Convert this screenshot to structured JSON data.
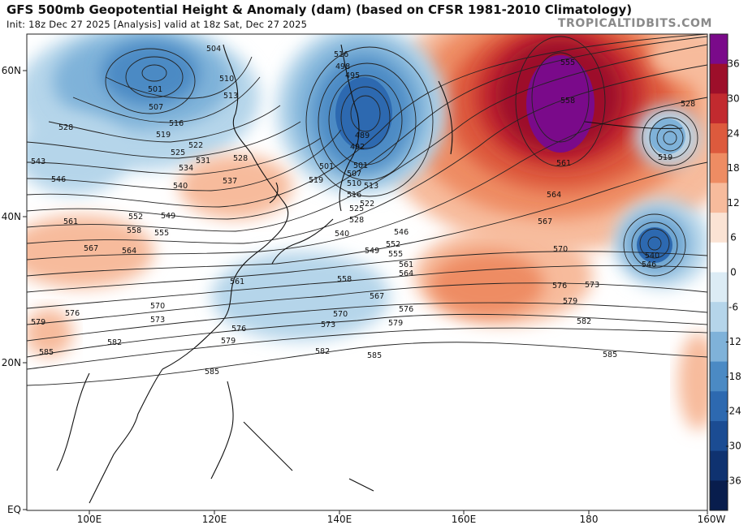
{
  "header": {
    "title": "GFS 500mb Geopotential Height & Anomaly (dam) (based on CFSR 1981-2010 Climatology)",
    "subtitle": "Init: 18z Dec 27 2025   [Analysis]   valid at 18z Sat, Dec 27 2025",
    "watermark": "TROPICALTIDBITS.COM"
  },
  "map": {
    "lat_labels": [
      "60N",
      "40N",
      "20N",
      "EQ"
    ],
    "lon_labels": [
      "100E",
      "120E",
      "140E",
      "160E",
      "180",
      "160W"
    ],
    "contour_labels": [
      "501",
      "504",
      "507",
      "510",
      "513",
      "516",
      "519",
      "522",
      "525",
      "528",
      "531",
      "534",
      "537",
      "540",
      "543",
      "546",
      "549",
      "552",
      "555",
      "558",
      "561",
      "564",
      "567",
      "570",
      "573",
      "576",
      "579",
      "582",
      "585",
      "489",
      "492",
      "495",
      "498",
      "510",
      "513",
      "516",
      "519",
      "522",
      "525",
      "528",
      "531",
      "537",
      "546",
      "546",
      "555",
      "558",
      "561",
      "564",
      "567",
      "570",
      "573",
      "576",
      "579",
      "582",
      "585",
      "519",
      "528",
      "540",
      "546"
    ],
    "colors": {
      "positive_max": "#7a0a8a",
      "strong_positive": "#b0182a",
      "positive": "#e26a4e",
      "weak_positive": "#f6c3a8",
      "weak_negative": "#bcd9ea",
      "negative": "#6aa3d0",
      "strong_negative": "#2d69b0",
      "land_line": "#111111"
    }
  },
  "colorbar": {
    "ticks": [
      "36",
      "30",
      "24",
      "18",
      "12",
      "6",
      "0",
      "-6",
      "-12",
      "-18",
      "-24",
      "-30",
      "-36"
    ],
    "colors": [
      "#7a0a8a",
      "#9d0f2a",
      "#c22a2f",
      "#dd5a3d",
      "#ee8c63",
      "#f7bb9c",
      "#fbe3d4",
      "#ffffff",
      "#dcecf5",
      "#b5d5ea",
      "#7fb2d9",
      "#4b8ac4",
      "#2d69b0",
      "#1b4c93",
      "#0f3270",
      "#081d4d"
    ]
  }
}
